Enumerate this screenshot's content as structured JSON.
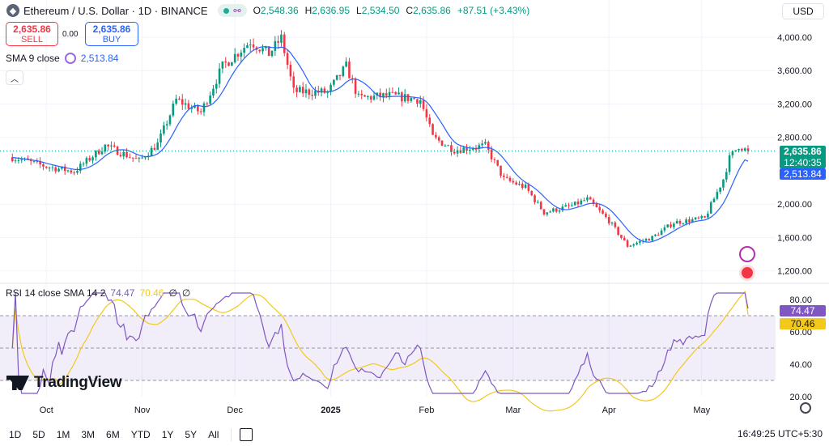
{
  "header": {
    "symbol_icon": "ethereum-icon",
    "title": "Ethereum / U.S. Dollar · 1D · BINANCE",
    "ohlc": [
      {
        "k": "O",
        "v": "2,548.36"
      },
      {
        "k": "H",
        "v": "2,636.95"
      },
      {
        "k": "L",
        "v": "2,534.50"
      },
      {
        "k": "C",
        "v": "2,635.86"
      }
    ],
    "change": "+87.51 (+3.43%)"
  },
  "trade": {
    "sell_price": "2,635.86",
    "sell_label": "SELL",
    "spread": "0.00",
    "buy_price": "2,635.86",
    "buy_label": "BUY"
  },
  "sma_legend": {
    "label": "SMA 9 close",
    "value": "2,513.84"
  },
  "collapse_icon": "chevron-up-icon",
  "rsi_legend": {
    "label": "RSI 14 close SMA 14 2",
    "rsi": "74.47",
    "ma": "70.46",
    "extra1": "∅",
    "extra2": "∅"
  },
  "currency": "USD",
  "price_scale": [
    "4,000.00",
    "3,600.00",
    "3,200.00",
    "2,800.00",
    "2,000.00",
    "1,600.00",
    "1,200.00"
  ],
  "price_tags": {
    "last": "2,635.86",
    "countdown": "12:40:35",
    "sma": "2,513.84"
  },
  "rsi_scale": [
    "80.00",
    "60.00",
    "40.00",
    "20.00"
  ],
  "rsi_tags": {
    "rsi": "74.47",
    "ma": "70.46"
  },
  "time_axis": [
    "Oct",
    "Nov",
    "Dec",
    "2025",
    "Feb",
    "Mar",
    "Apr",
    "May"
  ],
  "toolbar": {
    "timeframes": [
      "1D",
      "5D",
      "1M",
      "3M",
      "6M",
      "YTD",
      "1Y",
      "5Y",
      "All"
    ],
    "clock": "16:49:25 UTC+5:30"
  },
  "branding": "TradingView",
  "colors": {
    "up": "#089981",
    "down": "#f23645",
    "sma": "#2962ff",
    "rsi": "#7e57c2",
    "rsi_ma": "#f2c81c"
  },
  "chart_data": [
    {
      "type": "candlestick",
      "title": "Ethereum / U.S. Dollar · 1D · BINANCE",
      "ylim": [
        1100,
        4300
      ],
      "x_months": [
        "Oct",
        "Nov",
        "Dec",
        "2025",
        "Feb",
        "Mar",
        "Apr",
        "May"
      ],
      "close_points": [
        [
          "2024-09-20",
          2560
        ],
        [
          "2024-10-01",
          2450
        ],
        [
          "2024-10-10",
          2390
        ],
        [
          "2024-10-20",
          2700
        ],
        [
          "2024-10-31",
          2520
        ],
        [
          "2024-11-06",
          2720
        ],
        [
          "2024-11-12",
          3250
        ],
        [
          "2024-11-20",
          3100
        ],
        [
          "2024-11-27",
          3650
        ],
        [
          "2024-12-06",
          3950
        ],
        [
          "2024-12-12",
          3800
        ],
        [
          "2024-12-16",
          3990
        ],
        [
          "2024-12-20",
          3350
        ],
        [
          "2024-12-31",
          3340
        ],
        [
          "2025-01-06",
          3650
        ],
        [
          "2025-01-10",
          3270
        ],
        [
          "2025-01-20",
          3300
        ],
        [
          "2025-01-30",
          3250
        ],
        [
          "2025-02-03",
          2800
        ],
        [
          "2025-02-10",
          2650
        ],
        [
          "2025-02-20",
          2700
        ],
        [
          "2025-02-26",
          2300
        ],
        [
          "2025-03-05",
          2200
        ],
        [
          "2025-03-11",
          1900
        ],
        [
          "2025-03-20",
          1980
        ],
        [
          "2025-03-25",
          2060
        ],
        [
          "2025-04-01",
          1800
        ],
        [
          "2025-04-07",
          1500
        ],
        [
          "2025-04-15",
          1600
        ],
        [
          "2025-04-22",
          1780
        ],
        [
          "2025-05-02",
          1830
        ],
        [
          "2025-05-08",
          2300
        ],
        [
          "2025-05-10",
          2550
        ],
        [
          "2025-05-13",
          2700
        ],
        [
          "2025-05-16",
          2630
        ]
      ],
      "last": 2635.86,
      "sma9_last": 2513.84
    },
    {
      "type": "line",
      "title": "RSI 14 close SMA 14 2",
      "ylim": [
        20,
        85
      ],
      "levels": [
        70,
        50,
        30
      ],
      "series": [
        {
          "name": "RSI",
          "last": 74.47
        },
        {
          "name": "RSI SMA",
          "last": 70.46
        }
      ]
    }
  ]
}
